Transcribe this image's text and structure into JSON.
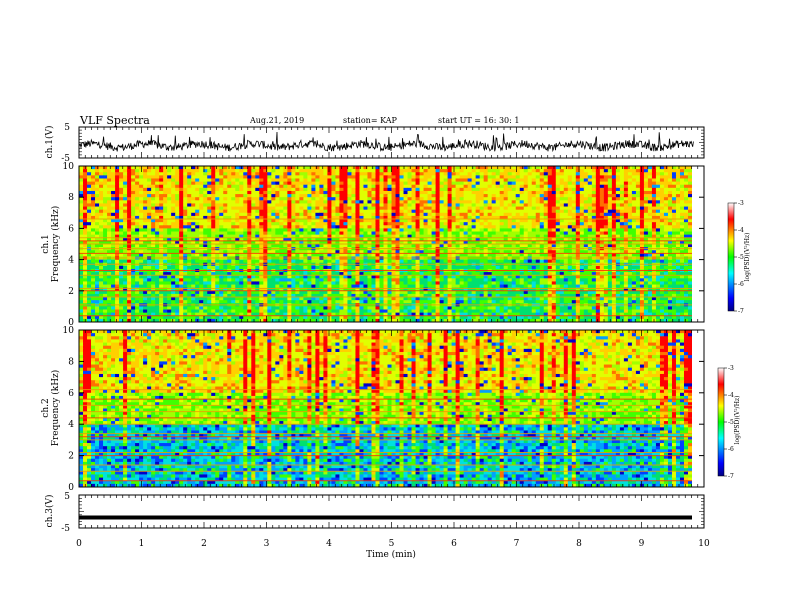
{
  "header": {
    "title": "VLF Spectra",
    "date": "Aug.21, 2019",
    "station": "station= KAP",
    "start": "start  UT  =   16: 30: 1"
  },
  "chart_data": [
    {
      "type": "line",
      "ylabel": "ch.1(V)",
      "ylim": [
        -5,
        5
      ],
      "yticks": [
        "5",
        "-5"
      ],
      "xlim": [
        0,
        10
      ],
      "color": "#000000",
      "description_values": "noisy waveform around about -1 V, spikes up to ~4 V"
    },
    {
      "type": "heatmap",
      "ylabel": "ch.1\nFrequency (kHz)",
      "ylabel_lines": [
        "ch.1",
        "Frequency (kHz)"
      ],
      "ylim": [
        0,
        10
      ],
      "yticks": [
        "0",
        "2",
        "4",
        "6",
        "8",
        "10"
      ],
      "xlim": [
        0,
        9.83
      ],
      "horizontal_lines_khz": [
        0.4,
        1.1,
        1.6,
        2.0,
        2.15,
        3.0,
        3.3,
        3.7,
        4.1,
        4.4,
        4.7,
        5.0,
        5.2,
        5.4,
        6.6
      ],
      "colorbar": {
        "label": "log(PSD)(V²/Hz)",
        "range": [
          -7,
          -3
        ],
        "ticks": [
          "-3",
          "-4",
          "-5",
          "-6",
          "-7"
        ]
      }
    },
    {
      "type": "heatmap",
      "ylabel": "ch.2\nFrequency (kHz)",
      "ylabel_lines": [
        "ch.2",
        "Frequency (kHz)"
      ],
      "ylim": [
        0,
        10
      ],
      "yticks": [
        "0",
        "2",
        "4",
        "6",
        "8",
        "10"
      ],
      "xlim": [
        0,
        9.83
      ],
      "horizontal_lines_khz": [
        0.4,
        1.0,
        1.4,
        2.0,
        2.2,
        3.0,
        3.2,
        3.4,
        4.0,
        4.4,
        4.8,
        5.2,
        5.6,
        6.2
      ],
      "colorbar": {
        "label": "log(PSD)(V²/Hz)",
        "range": [
          -7,
          -3
        ],
        "ticks": [
          "-3",
          "-4",
          "-5",
          "-6",
          "-7"
        ]
      }
    },
    {
      "type": "line",
      "ylabel": "ch.3(V)",
      "ylim": [
        -5,
        5
      ],
      "yticks": [
        "5",
        "-5"
      ],
      "xlim": [
        0,
        10
      ],
      "constant_value": -1.8,
      "color": "#000000"
    }
  ],
  "xaxis": {
    "label": "Time (min)",
    "ticks": [
      "0",
      "1",
      "2",
      "3",
      "4",
      "5",
      "6",
      "7",
      "8",
      "9",
      "10"
    ],
    "range": [
      0,
      10
    ]
  }
}
